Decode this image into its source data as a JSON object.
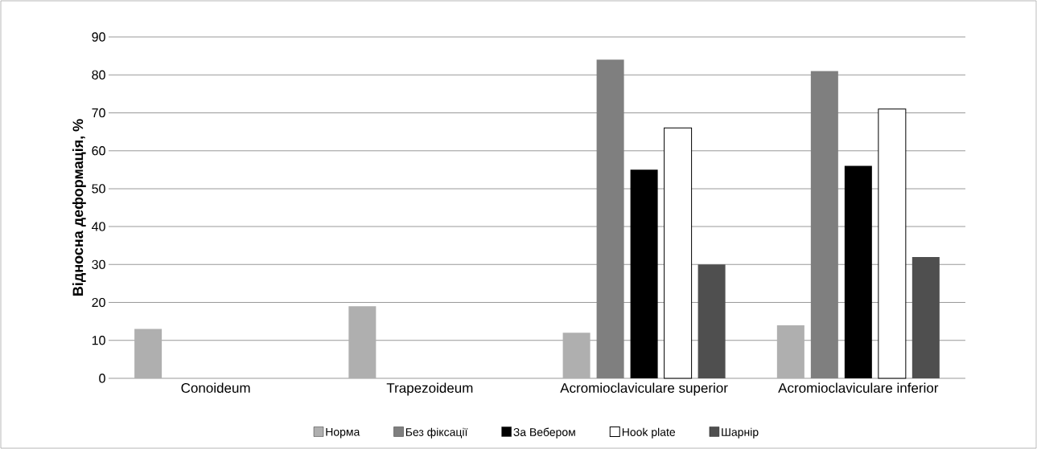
{
  "chart_data": {
    "type": "bar",
    "ylabel": "Відносна деформація, %",
    "categories": [
      "Conoideum",
      "Trapezoideum",
      "Acromioclaviculare superior",
      "Acromioclaviculare inferior"
    ],
    "series": [
      {
        "name": "Норма",
        "color": "#afafaf",
        "values": [
          13,
          19,
          12,
          14
        ]
      },
      {
        "name": "Без фіксації",
        "color": "#7f7f7f",
        "values": [
          null,
          null,
          84,
          81
        ]
      },
      {
        "name": "За Вебером",
        "color": "#000000",
        "values": [
          null,
          null,
          55,
          56
        ]
      },
      {
        "name": "Hook plate",
        "color": "#ffffff",
        "values": [
          null,
          null,
          66,
          71
        ]
      },
      {
        "name": "Шарнір",
        "color": "#4f4f4f",
        "values": [
          null,
          null,
          30,
          32
        ]
      }
    ],
    "ylim": [
      0,
      90
    ],
    "yticks": [
      0,
      10,
      20,
      30,
      40,
      50,
      60,
      70,
      80,
      90
    ],
    "grid": "y",
    "legend": "bottom"
  }
}
